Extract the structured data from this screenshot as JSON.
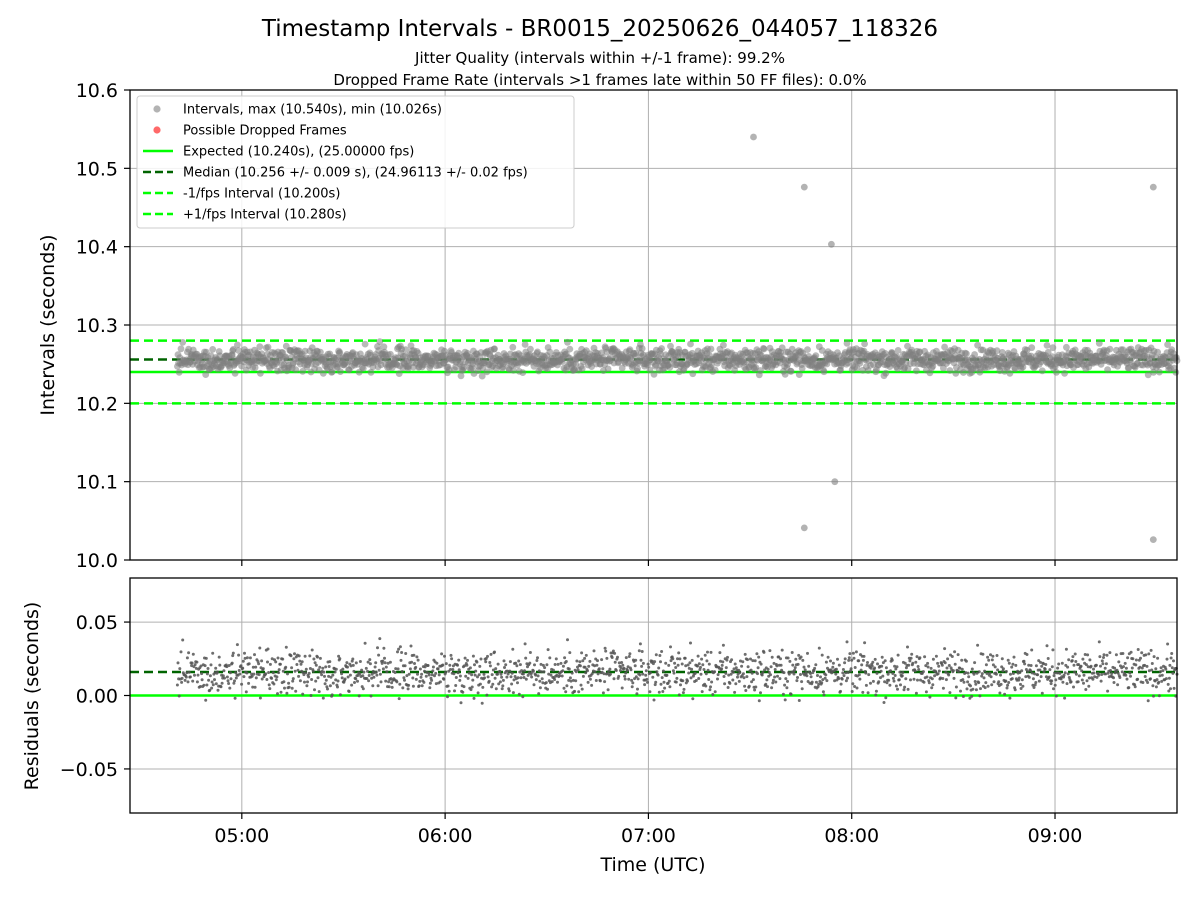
{
  "title": "Timestamp Intervals - BR0015_20250626_044057_118326",
  "subtitle_1": "Jitter Quality (intervals within +/-1 frame): 99.2%",
  "subtitle_2": "Dropped Frame Rate (intervals >1 frames late within 50 FF files): 0.0%",
  "colors": {
    "points_main": "#808080",
    "points_resid": "#555555",
    "dropped": "#ff4444",
    "expected": "#00ff00",
    "median": "#006400",
    "band": "#00ff00",
    "grid": "#b0b0b0"
  },
  "legend": {
    "placement": "upper-left",
    "items": [
      {
        "key": "intervals",
        "label": "Intervals, max (10.540s), min (10.026s)"
      },
      {
        "key": "dropped",
        "label": "Possible Dropped Frames"
      },
      {
        "key": "expected",
        "label": "Expected (10.240s), (25.00000 fps)"
      },
      {
        "key": "median",
        "label": "Median (10.256 +/- 0.009 s), (24.96113 +/- 0.02 fps)"
      },
      {
        "key": "minus",
        "label": "-1/fps Interval (10.200s)"
      },
      {
        "key": "plus",
        "label": "+1/fps Interval (10.280s)"
      }
    ]
  },
  "chart_data": [
    {
      "type": "scatter",
      "name": "intervals",
      "xlabel": "",
      "ylabel": "Intervals (seconds)",
      "xlim": [
        "04:27",
        "09:36"
      ],
      "ylim": [
        10.0,
        10.6
      ],
      "yticks": [
        "10.0",
        "10.1",
        "10.2",
        "10.3",
        "10.4",
        "10.5",
        "10.6"
      ],
      "grid": true,
      "expected": 10.24,
      "median": 10.256,
      "minus_interval": 10.2,
      "plus_interval": 10.28,
      "x_range": [
        "04:41",
        "09:36"
      ],
      "point_count": 1700,
      "typical_band": [
        10.235,
        10.28
      ],
      "max": 10.54,
      "min": 10.026,
      "outliers": [
        {
          "t": "07:31",
          "y": 10.54
        },
        {
          "t": "07:46",
          "y": 10.476
        },
        {
          "t": "07:46",
          "y": 10.041
        },
        {
          "t": "07:54",
          "y": 10.403
        },
        {
          "t": "07:55",
          "y": 10.1
        },
        {
          "t": "09:29",
          "y": 10.476
        },
        {
          "t": "09:29",
          "y": 10.026
        }
      ]
    },
    {
      "type": "scatter",
      "name": "residuals",
      "xlabel": "Time (UTC)",
      "ylabel": "Residuals (seconds)",
      "xlim": [
        "04:27",
        "09:36"
      ],
      "ylim": [
        -0.08,
        0.08
      ],
      "yticks": [
        "−0.05",
        "0.00",
        "0.05"
      ],
      "ytick_values": [
        -0.05,
        0.0,
        0.05
      ],
      "xticks": [
        "05:00",
        "06:00",
        "07:00",
        "08:00",
        "09:00"
      ],
      "grid": true,
      "expected": 0.0,
      "median": 0.016,
      "typical_band": [
        -0.01,
        0.04
      ]
    }
  ]
}
